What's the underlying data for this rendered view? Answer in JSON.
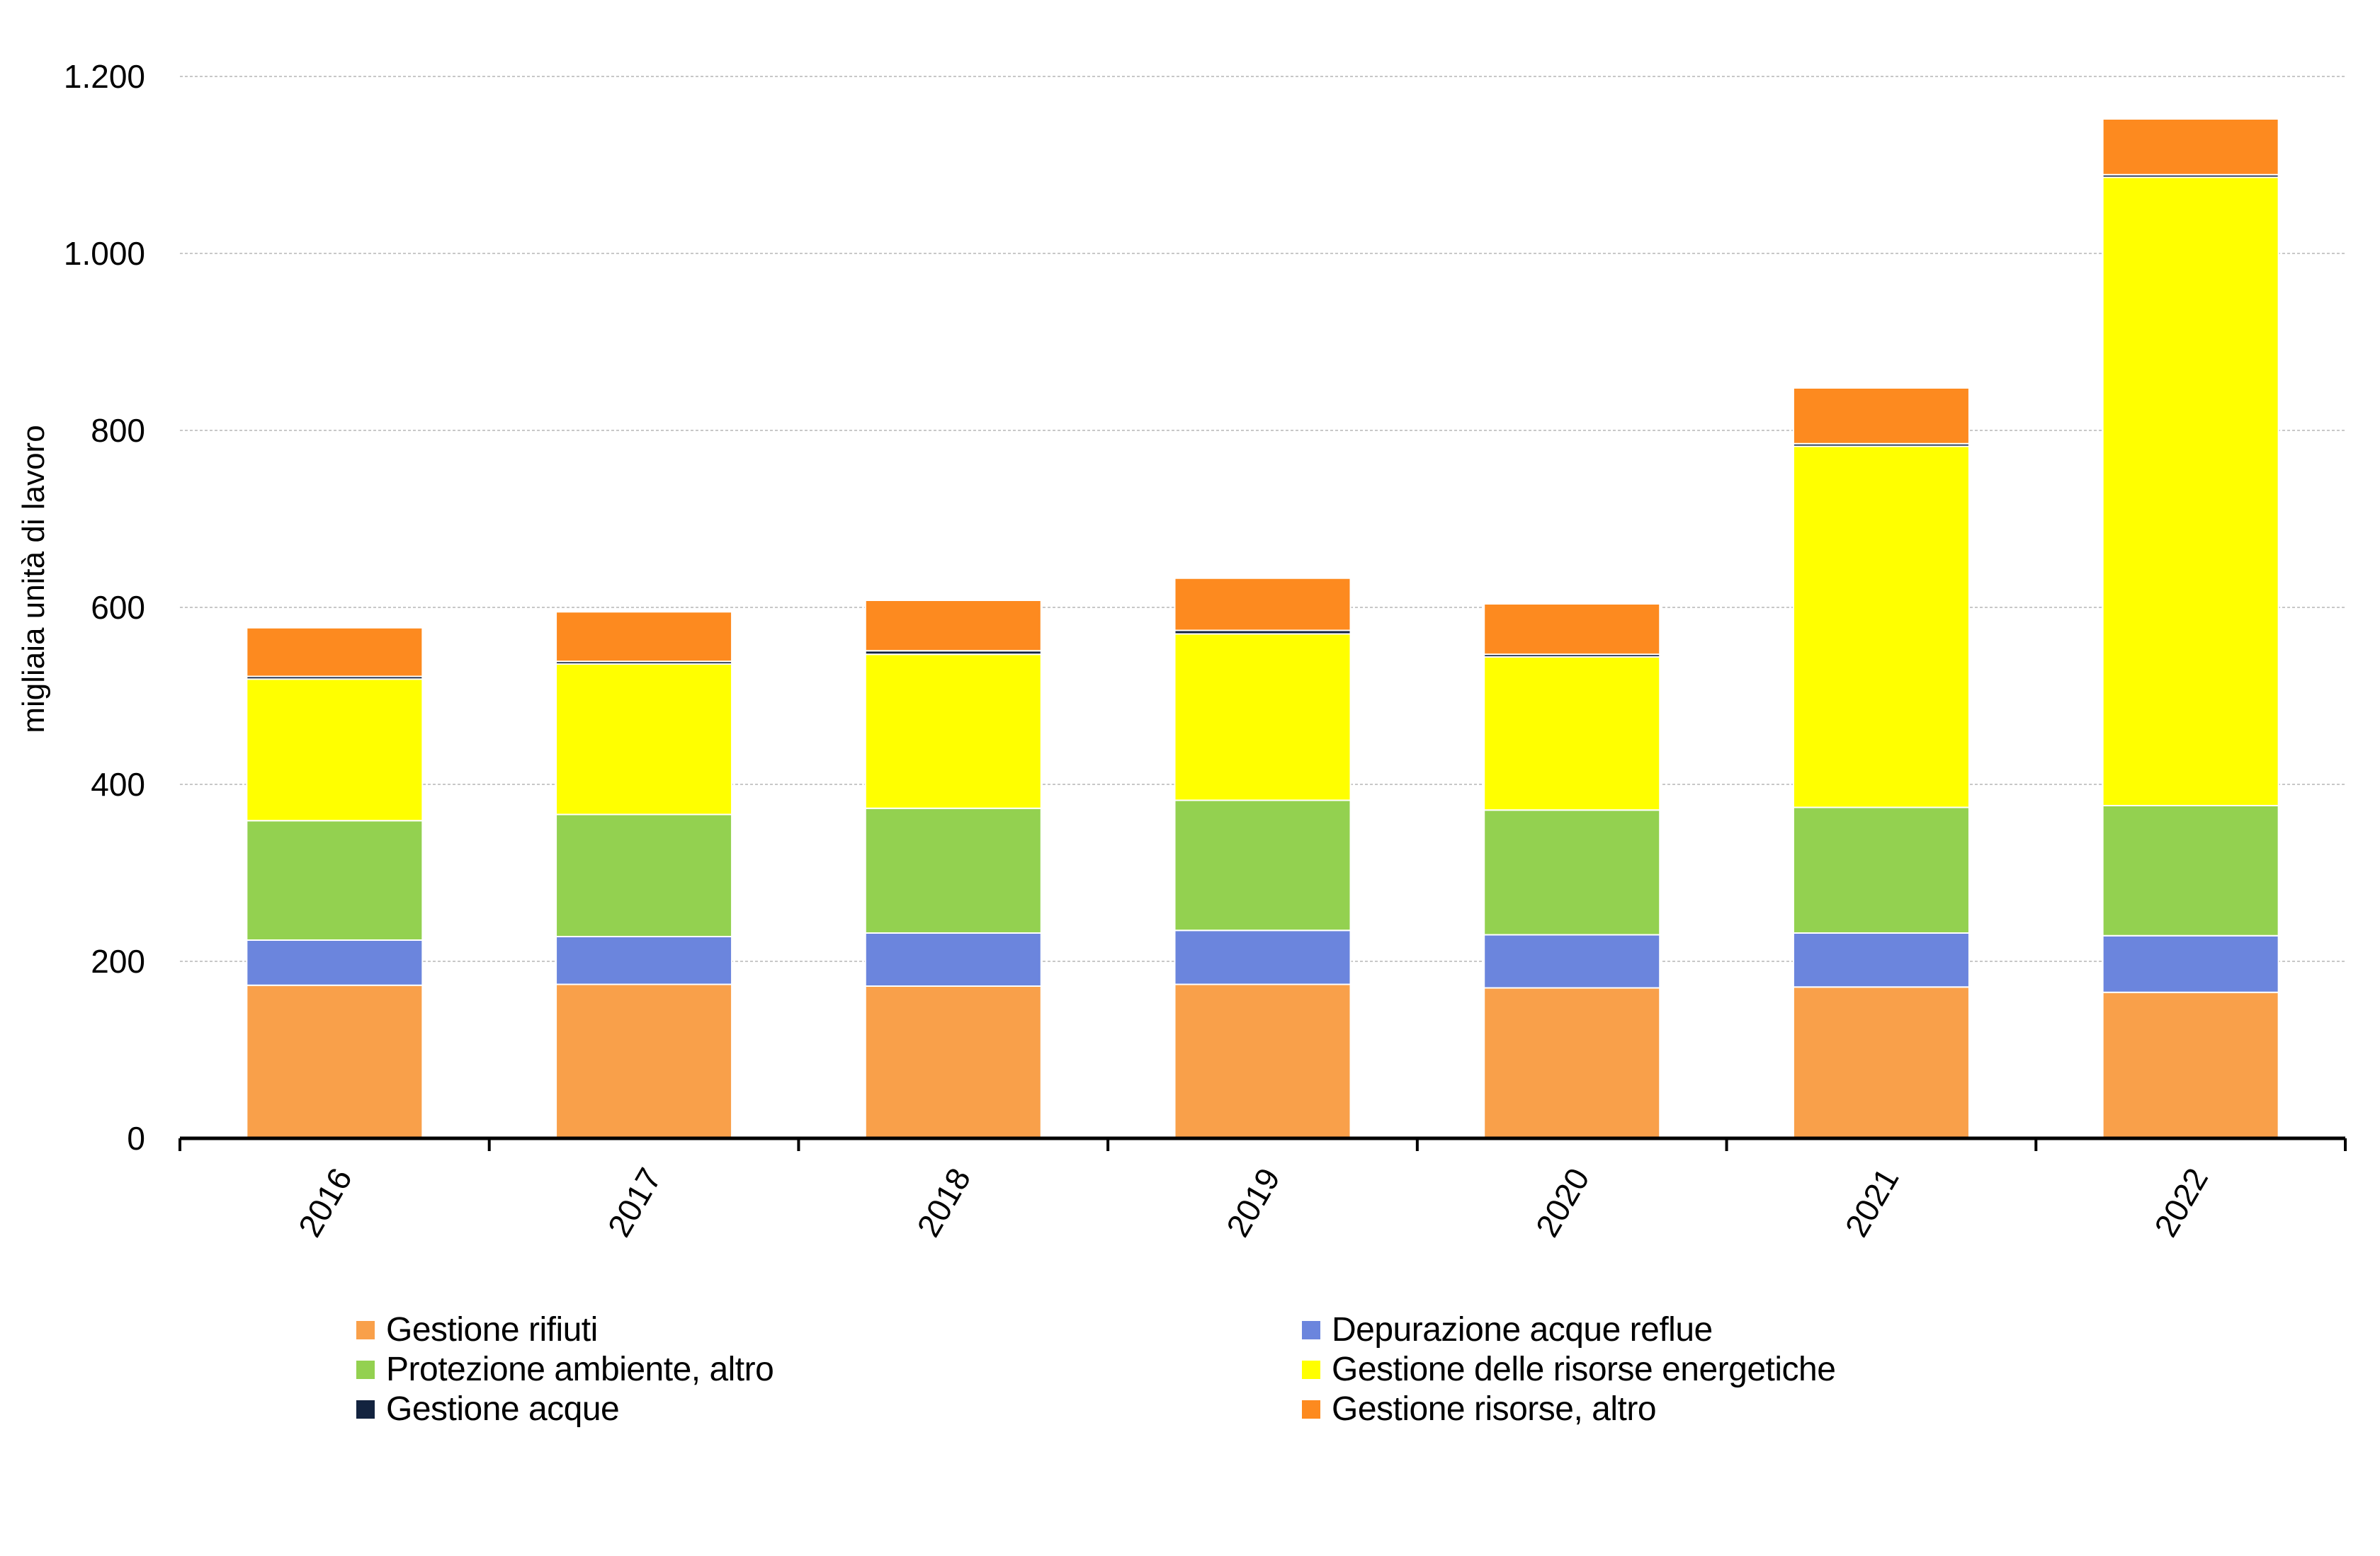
{
  "chart_data": {
    "type": "bar",
    "stacked": true,
    "title": "",
    "xlabel": "",
    "ylabel": "migliaia unità di lavoro",
    "ylim": [
      0,
      1200
    ],
    "yticks": [
      0,
      200,
      400,
      600,
      800,
      1000,
      1200
    ],
    "ytick_labels": [
      "0",
      "200",
      "400",
      "600",
      "800",
      "1.000",
      "1.200"
    ],
    "grid": true,
    "legend_position": "bottom",
    "categories": [
      "2016",
      "2017",
      "2018",
      "2019",
      "2020",
      "2021",
      "2022"
    ],
    "series": [
      {
        "name": "Gestione rifiuti",
        "color": "#F9A04A",
        "values": [
          173,
          174,
          172,
          174,
          170,
          171,
          165
        ]
      },
      {
        "name": "Depurazione acque reflue",
        "color": "#6B85DD",
        "values": [
          51,
          54,
          60,
          61,
          60,
          61,
          64
        ]
      },
      {
        "name": "Protezione ambiente, altro",
        "color": "#93D150",
        "values": [
          135,
          138,
          141,
          147,
          141,
          142,
          147
        ]
      },
      {
        "name": "Gestione delle risorse energetiche",
        "color": "#FFFF00",
        "values": [
          160,
          170,
          174,
          188,
          173,
          408,
          710
        ]
      },
      {
        "name": "Gestione acque",
        "color": "#13233F",
        "values": [
          3,
          3,
          4,
          4,
          3,
          3,
          3
        ]
      },
      {
        "name": "Gestione risorse, altro",
        "color": "#FD8A1F",
        "values": [
          55,
          56,
          57,
          59,
          57,
          63,
          63
        ]
      }
    ]
  },
  "legend": {
    "items": [
      {
        "label": "Gestione rifiuti",
        "color": "#F9A04A"
      },
      {
        "label": "Depurazione acque reflue",
        "color": "#6B85DD"
      },
      {
        "label": "Protezione ambiente, altro",
        "color": "#93D150"
      },
      {
        "label": "Gestione delle risorse energetiche",
        "color": "#FFFF00"
      },
      {
        "label": "Gestione acque",
        "color": "#13233F"
      },
      {
        "label": "Gestione risorse, altro",
        "color": "#FD8A1F"
      }
    ]
  }
}
